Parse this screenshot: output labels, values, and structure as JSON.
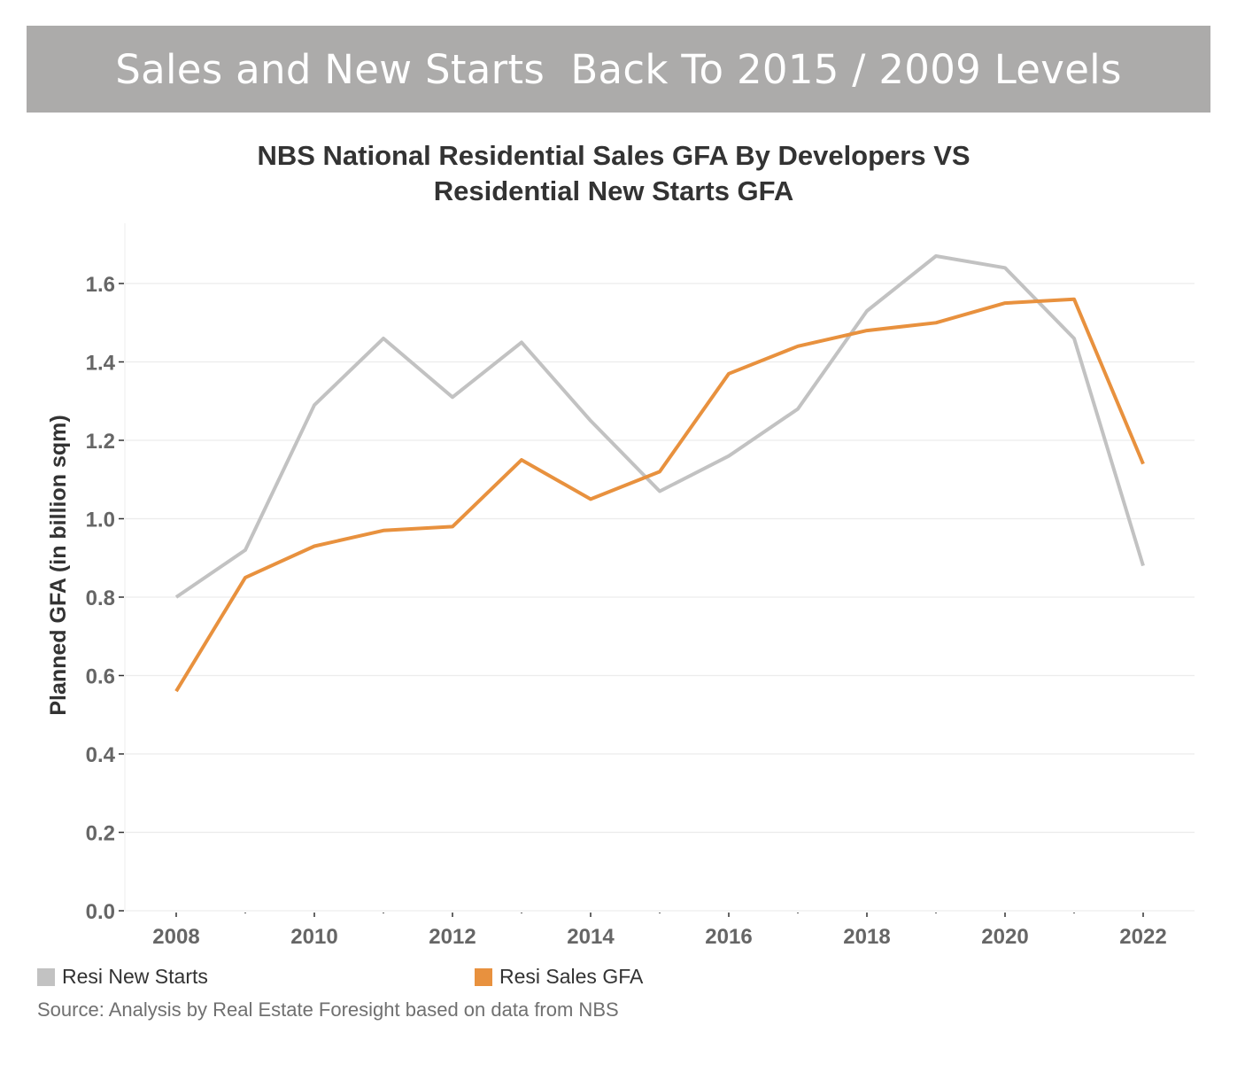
{
  "banner": {
    "title": "Sales and New Starts  Back To 2015 / 2009 Levels",
    "background_color": "#acabaa"
  },
  "chart_data": {
    "type": "line",
    "title_lines": [
      "NBS National Residential Sales GFA By Developers VS",
      "Residential New Starts GFA"
    ],
    "xlabel": "",
    "ylabel": "Planned GFA (in billion sqm)",
    "x": [
      2008,
      2009,
      2010,
      2011,
      2012,
      2013,
      2014,
      2015,
      2016,
      2017,
      2018,
      2019,
      2020,
      2021,
      2022
    ],
    "x_tick_labels": [
      "2008",
      "2010",
      "2012",
      "2014",
      "2016",
      "2018",
      "2020",
      "2022"
    ],
    "y_tick_labels": [
      "0.0",
      "0.2",
      "0.4",
      "0.6",
      "0.8",
      "1.0",
      "1.2",
      "1.4",
      "1.6"
    ],
    "ylim": [
      0,
      1.75
    ],
    "xlim": [
      2007.8,
      2022.75
    ],
    "grid": true,
    "legend_placement": "bottom",
    "series": [
      {
        "name": "Resi New Starts",
        "color": "#c2c2c2",
        "values": [
          0.8,
          0.92,
          1.29,
          1.46,
          1.31,
          1.45,
          1.25,
          1.07,
          1.16,
          1.28,
          1.53,
          1.67,
          1.64,
          1.46,
          0.88
        ]
      },
      {
        "name": "Resi Sales GFA",
        "color": "#e8913e",
        "values": [
          0.56,
          0.85,
          0.93,
          0.97,
          0.98,
          1.15,
          1.05,
          1.12,
          1.37,
          1.44,
          1.48,
          1.5,
          1.55,
          1.56,
          1.14
        ]
      }
    ]
  },
  "legend": {
    "items": [
      {
        "label": "Resi New Starts",
        "color": "#c2c2c2"
      },
      {
        "label": "Resi Sales GFA",
        "color": "#e8913e"
      }
    ]
  },
  "source": "Source: Analysis by Real Estate Foresight based on data from NBS"
}
